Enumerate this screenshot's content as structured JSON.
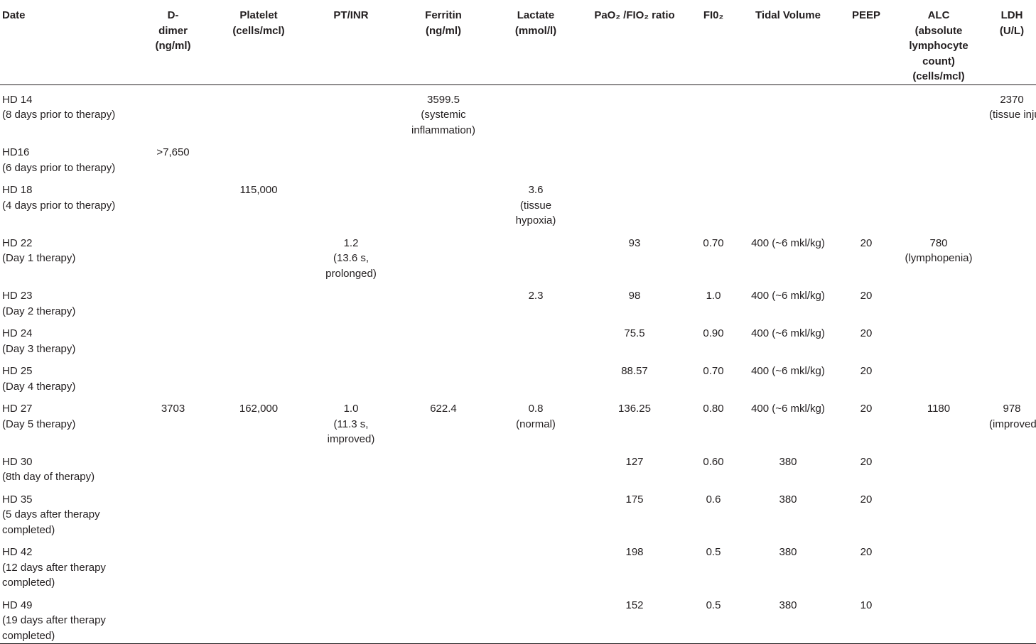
{
  "headers": [
    [
      "Date"
    ],
    [
      "D-",
      "dimer",
      "(ng/ml)"
    ],
    [
      "Platelet",
      "(cells/mcl)"
    ],
    [
      "PT/INR"
    ],
    [
      "Ferritin",
      "(ng/ml)"
    ],
    [
      "Lactate",
      "(mmol/l)"
    ],
    [
      "PaO₂ /FIO₂ ratio"
    ],
    [
      "FI0₂"
    ],
    [
      "Tidal Volume"
    ],
    [
      "PEEP"
    ],
    [
      "ALC",
      "(absolute",
      "lymphocyte",
      "count)",
      "(cells/mcl)"
    ],
    [
      "LDH (U/L)"
    ]
  ],
  "rows": [
    [
      [
        "HD 14",
        "(8 days prior to therapy)"
      ],
      [],
      [],
      [],
      [
        "3599.5",
        "(systemic",
        "inflammation)"
      ],
      [],
      [],
      [],
      [],
      [],
      [],
      [
        "2370",
        "(tissue injury)"
      ]
    ],
    [
      [
        "HD16",
        "(6 days prior to therapy)"
      ],
      [
        ">7,650"
      ],
      [],
      [],
      [],
      [],
      [],
      [],
      [],
      [],
      [],
      []
    ],
    [
      [
        "HD 18",
        "(4 days prior to therapy)"
      ],
      [],
      [
        "115,000"
      ],
      [],
      [],
      [
        "3.6",
        "(tissue",
        "hypoxia)"
      ],
      [],
      [],
      [],
      [],
      [],
      []
    ],
    [
      [
        "HD 22",
        "(Day 1 therapy)"
      ],
      [],
      [],
      [
        "1.2",
        "(13.6 s,",
        "prolonged)"
      ],
      [],
      [],
      [
        "93"
      ],
      [
        "0.70"
      ],
      [
        "400 (~6 mkl/kg)"
      ],
      [
        "20"
      ],
      [
        "780",
        "(lymphopenia)"
      ],
      []
    ],
    [
      [
        "HD 23",
        "(Day 2 therapy)"
      ],
      [],
      [],
      [],
      [],
      [
        "2.3"
      ],
      [
        "98"
      ],
      [
        "1.0"
      ],
      [
        "400 (~6 mkl/kg)"
      ],
      [
        "20"
      ],
      [],
      []
    ],
    [
      [
        "HD 24",
        "(Day 3 therapy)"
      ],
      [],
      [],
      [],
      [],
      [],
      [
        "75.5"
      ],
      [
        "0.90"
      ],
      [
        "400 (~6 mkl/kg)"
      ],
      [
        "20"
      ],
      [],
      []
    ],
    [
      [
        "HD 25",
        "(Day 4 therapy)"
      ],
      [],
      [],
      [],
      [],
      [],
      [
        "88.57"
      ],
      [
        "0.70"
      ],
      [
        "400 (~6 mkl/kg)"
      ],
      [
        "20"
      ],
      [],
      []
    ],
    [
      [
        "HD 27",
        "(Day 5 therapy)"
      ],
      [
        "3703"
      ],
      [
        "162,000"
      ],
      [
        "1.0",
        "(11.3 s,",
        "improved)"
      ],
      [
        "622.4"
      ],
      [
        "0.8",
        "(normal)"
      ],
      [
        "136.25"
      ],
      [
        "0.80"
      ],
      [
        "400 (~6 mkl/kg)"
      ],
      [
        "20"
      ],
      [
        "1180"
      ],
      [
        "978",
        "(improved)"
      ]
    ],
    [
      [
        "HD 30",
        "(8th day of therapy)"
      ],
      [],
      [],
      [],
      [],
      [],
      [
        "127"
      ],
      [
        "0.60"
      ],
      [
        "380"
      ],
      [
        "20"
      ],
      [],
      []
    ],
    [
      [
        "HD 35",
        "(5 days after therapy",
        "completed)"
      ],
      [],
      [],
      [],
      [],
      [],
      [
        "175"
      ],
      [
        "0.6"
      ],
      [
        "380"
      ],
      [
        "20"
      ],
      [],
      []
    ],
    [
      [
        "HD 42",
        "(12 days after therapy",
        "completed)"
      ],
      [],
      [],
      [],
      [],
      [],
      [
        "198"
      ],
      [
        "0.5"
      ],
      [
        "380"
      ],
      [
        "20"
      ],
      [],
      []
    ],
    [
      [
        "HD 49",
        "(19 days after therapy",
        "completed)"
      ],
      [],
      [],
      [],
      [],
      [],
      [
        "152"
      ],
      [
        "0.5"
      ],
      [
        "380"
      ],
      [
        "10"
      ],
      [],
      []
    ]
  ]
}
